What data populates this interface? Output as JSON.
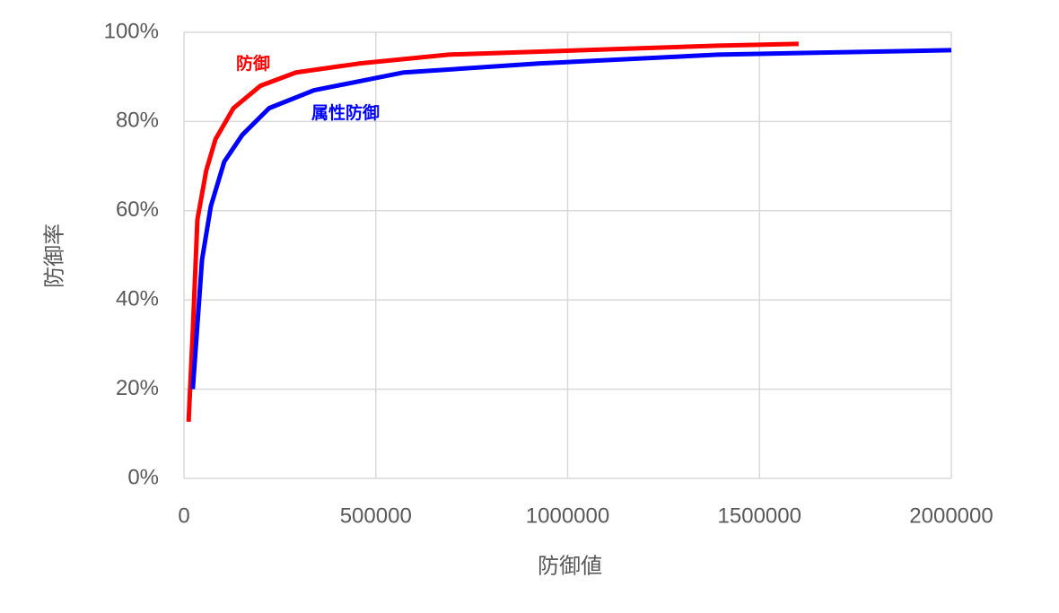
{
  "chart_data": {
    "type": "line",
    "x_label": "防御値",
    "y_label": "防御率",
    "xlim": [
      0,
      2000000
    ],
    "xticks": [
      0,
      500000,
      1000000,
      1500000,
      2000000
    ],
    "ylim": [
      0,
      100
    ],
    "yticks": [
      {
        "value": 0,
        "label": "0%"
      },
      {
        "value": 20,
        "label": "20%"
      },
      {
        "value": 40,
        "label": "40%"
      },
      {
        "value": 60,
        "label": "60%"
      },
      {
        "value": 80,
        "label": "80%"
      },
      {
        "value": 100,
        "label": "100%"
      }
    ],
    "grid": true,
    "series": [
      {
        "name": "防御",
        "color": "#ff0000",
        "x": [
          12000,
          23000,
          35000,
          58000,
          82000,
          129000,
          199000,
          292000,
          456000,
          690000,
          1041000,
          1392000,
          1602000
        ],
        "values": [
          12.7,
          33,
          58,
          69,
          76,
          83,
          88,
          91,
          93,
          95,
          96,
          97,
          97.4
        ]
      },
      {
        "name": "属性防御",
        "color": "#0000ff",
        "x": [
          23000,
          47000,
          70000,
          105000,
          152000,
          222000,
          339000,
          573000,
          924000,
          1392000,
          2000000
        ],
        "values": [
          20,
          49,
          61,
          71,
          77,
          83,
          87,
          91,
          93,
          95,
          96
        ]
      }
    ]
  }
}
